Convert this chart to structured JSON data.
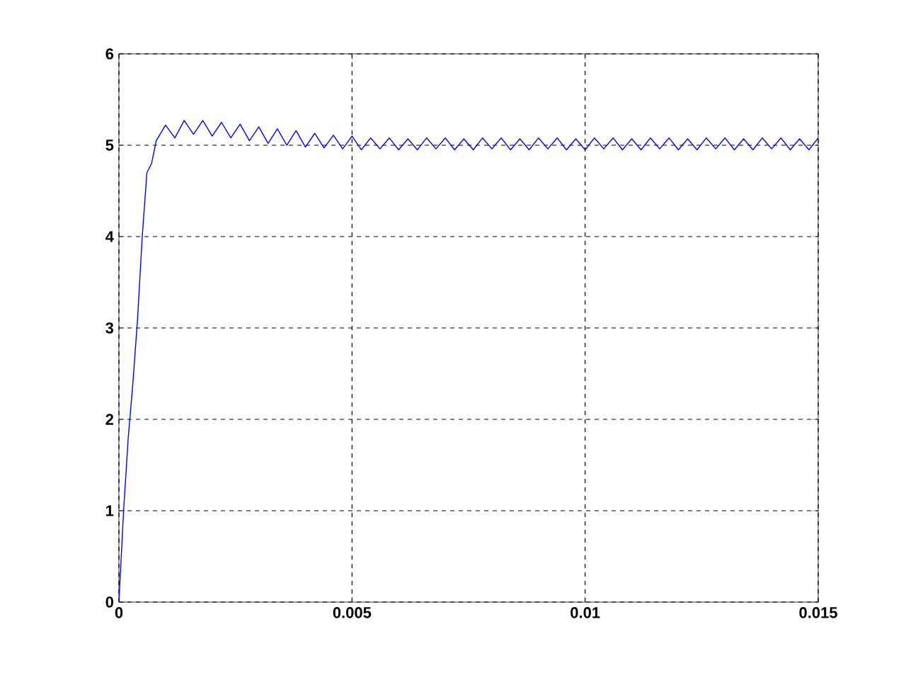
{
  "chart_data": {
    "type": "line",
    "x": [
      0,
      0.0001,
      0.0002,
      0.0003,
      0.0004,
      0.0005,
      0.0006,
      0.0007,
      0.0008,
      0.001,
      0.0012,
      0.0014,
      0.0016,
      0.0018,
      0.002,
      0.0022,
      0.0024,
      0.0026,
      0.0028,
      0.003,
      0.0032,
      0.0034,
      0.0036,
      0.0038,
      0.004,
      0.0042,
      0.0044,
      0.0046,
      0.0048,
      0.005,
      0.0052,
      0.0054,
      0.0056,
      0.0058,
      0.006,
      0.0062,
      0.0064,
      0.0066,
      0.0068,
      0.007,
      0.0072,
      0.0074,
      0.0076,
      0.0078,
      0.008,
      0.0082,
      0.0084,
      0.0086,
      0.0088,
      0.009,
      0.0092,
      0.0094,
      0.0096,
      0.0098,
      0.01,
      0.0102,
      0.0104,
      0.0106,
      0.0108,
      0.011,
      0.0112,
      0.0114,
      0.0116,
      0.0118,
      0.012,
      0.0122,
      0.0124,
      0.0126,
      0.0128,
      0.013,
      0.0132,
      0.0134,
      0.0136,
      0.0138,
      0.014,
      0.0142,
      0.0144,
      0.0146,
      0.0148,
      0.015
    ],
    "series": [
      {
        "color": "#0000ff",
        "values": [
          0,
          1.0,
          1.8,
          2.4,
          3.1,
          4.0,
          4.7,
          4.8,
          5.05,
          5.22,
          5.08,
          5.27,
          5.12,
          5.27,
          5.1,
          5.25,
          5.08,
          5.23,
          5.05,
          5.2,
          5.02,
          5.18,
          5.0,
          5.16,
          4.98,
          5.13,
          4.97,
          5.11,
          4.96,
          5.1,
          4.95,
          5.08,
          4.96,
          5.08,
          4.95,
          5.07,
          4.95,
          5.08,
          4.96,
          5.08,
          4.95,
          5.07,
          4.95,
          5.08,
          4.96,
          5.08,
          4.95,
          5.07,
          4.95,
          5.08,
          4.96,
          5.08,
          4.95,
          5.07,
          4.95,
          5.08,
          4.96,
          5.08,
          4.95,
          5.07,
          4.95,
          5.08,
          4.96,
          5.08,
          4.95,
          5.07,
          4.95,
          5.08,
          4.96,
          5.08,
          4.95,
          5.07,
          4.95,
          5.08,
          4.96,
          5.08,
          4.95,
          5.07,
          4.95,
          5.08
        ]
      }
    ],
    "xlim": [
      0,
      0.015
    ],
    "ylim": [
      0,
      6
    ],
    "xticks": [
      0,
      0.005,
      0.01,
      0.015
    ],
    "yticks": [
      0,
      1,
      2,
      3,
      4,
      5,
      6
    ],
    "grid": true,
    "line_style": "solid"
  }
}
